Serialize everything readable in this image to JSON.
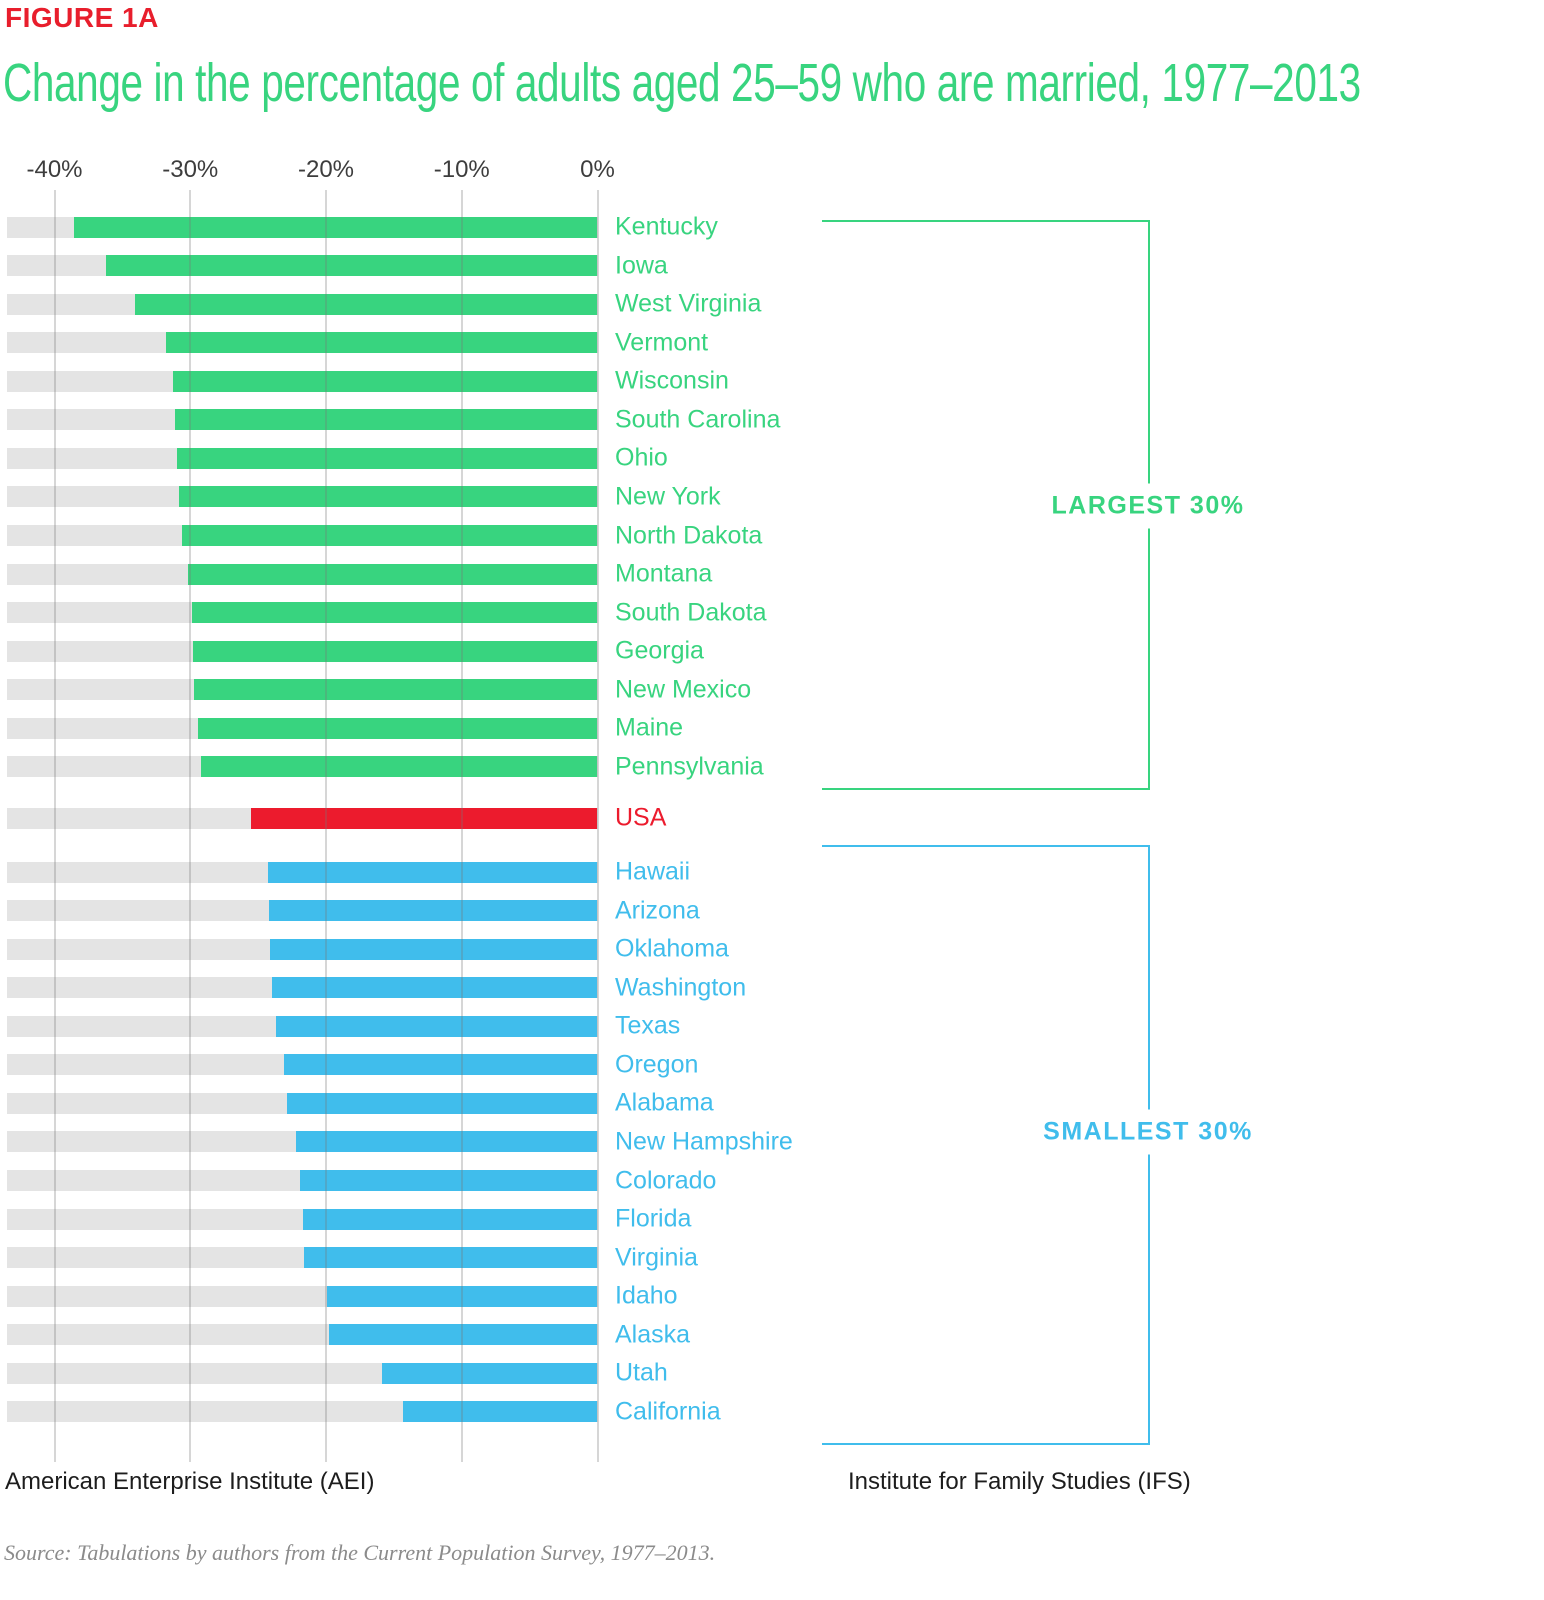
{
  "figure_label": "FIGURE 1A",
  "title": "Change in the percentage of adults aged 25–59 who are married, 1977–2013",
  "colors": {
    "largest": "#38d47f",
    "smallest": "#40bdec",
    "usa": "#ec1b2d",
    "figure_label_red": "#e81e2c",
    "title_green": "#38d47f",
    "track_gray": "#e4e4e4",
    "gridline": "rgba(120,120,120,0.30)",
    "axis_text": "#3d3d3d",
    "footer_text": "#1d1d1d",
    "source_text": "#8b8b8b"
  },
  "chart_data": {
    "type": "bar",
    "orientation": "horizontal",
    "title": "Change in the percentage of adults aged 25–59 who are married, 1977–2013",
    "xlabel": "",
    "ylabel": "",
    "xlim": [
      -43.5,
      0
    ],
    "x_ticks": [
      -40,
      -30,
      -20,
      -10,
      0
    ],
    "x_tick_labels": [
      "-40%",
      "-30%",
      "-20%",
      "-10%",
      "0%"
    ],
    "grid": true,
    "track_background_extends_to": -43.5,
    "units": "percent change",
    "rows": [
      {
        "label": "Kentucky",
        "value": -38.6,
        "group": "largest"
      },
      {
        "label": "Iowa",
        "value": -36.2,
        "group": "largest"
      },
      {
        "label": "West Virginia",
        "value": -34.1,
        "group": "largest"
      },
      {
        "label": "Vermont",
        "value": -31.8,
        "group": "largest"
      },
      {
        "label": "Wisconsin",
        "value": -31.3,
        "group": "largest"
      },
      {
        "label": "South Carolina",
        "value": -31.1,
        "group": "largest"
      },
      {
        "label": "Ohio",
        "value": -31.0,
        "group": "largest"
      },
      {
        "label": "New York",
        "value": -30.8,
        "group": "largest"
      },
      {
        "label": "North Dakota",
        "value": -30.6,
        "group": "largest"
      },
      {
        "label": "Montana",
        "value": -30.2,
        "group": "largest"
      },
      {
        "label": "South Dakota",
        "value": -29.9,
        "group": "largest"
      },
      {
        "label": "Georgia",
        "value": -29.8,
        "group": "largest"
      },
      {
        "label": "New Mexico",
        "value": -29.7,
        "group": "largest"
      },
      {
        "label": "Maine",
        "value": -29.4,
        "group": "largest"
      },
      {
        "label": "Pennsylvania",
        "value": -29.2,
        "group": "largest"
      },
      {
        "label": "USA",
        "value": -25.5,
        "group": "usa"
      },
      {
        "label": "Hawaii",
        "value": -24.3,
        "group": "smallest"
      },
      {
        "label": "Arizona",
        "value": -24.2,
        "group": "smallest"
      },
      {
        "label": "Oklahoma",
        "value": -24.1,
        "group": "smallest"
      },
      {
        "label": "Washington",
        "value": -24.0,
        "group": "smallest"
      },
      {
        "label": "Texas",
        "value": -23.7,
        "group": "smallest"
      },
      {
        "label": "Oregon",
        "value": -23.1,
        "group": "smallest"
      },
      {
        "label": "Alabama",
        "value": -22.9,
        "group": "smallest"
      },
      {
        "label": "New Hampshire",
        "value": -22.2,
        "group": "smallest"
      },
      {
        "label": "Colorado",
        "value": -21.9,
        "group": "smallest"
      },
      {
        "label": "Florida",
        "value": -21.7,
        "group": "smallest"
      },
      {
        "label": "Virginia",
        "value": -21.6,
        "group": "smallest"
      },
      {
        "label": "Idaho",
        "value": -19.9,
        "group": "smallest"
      },
      {
        "label": "Alaska",
        "value": -19.8,
        "group": "smallest"
      },
      {
        "label": "Utah",
        "value": -15.9,
        "group": "smallest"
      },
      {
        "label": "California",
        "value": -14.3,
        "group": "smallest"
      }
    ],
    "annotations": [
      {
        "label": "LARGEST 30%",
        "group": "largest"
      },
      {
        "label": "SMALLEST 30%",
        "group": "smallest"
      }
    ],
    "legend_position": "right-brackets"
  },
  "brackets": {
    "largest_label": "LARGEST 30%",
    "smallest_label": "SMALLEST 30%"
  },
  "footer": {
    "left": "American Enterprise Institute (AEI)",
    "right": "Institute for Family Studies (IFS)",
    "source": "Source: Tabulations by authors from the Current Population Survey, 1977–2013."
  }
}
